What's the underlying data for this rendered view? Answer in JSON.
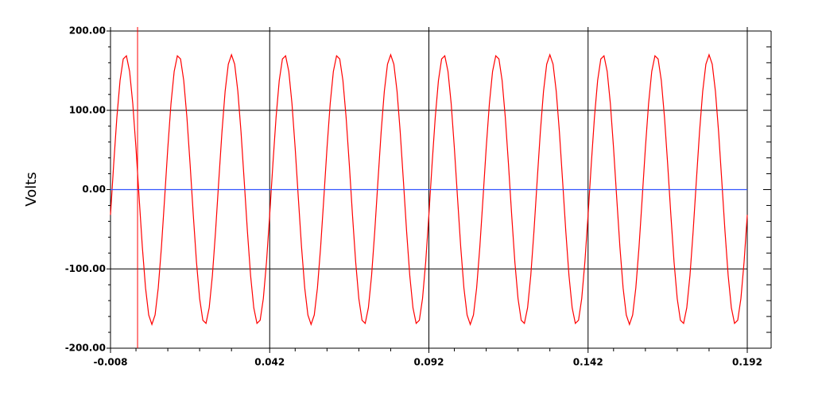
{
  "chart_data": {
    "type": "line",
    "y_label": "Volts",
    "xlim": [
      -0.008,
      0.192
    ],
    "xticks": [
      -0.008,
      0.042,
      0.092,
      0.142,
      0.192
    ],
    "minor_xticks": [
      0,
      0.01,
      0.02,
      0.03,
      0.05,
      0.06,
      0.07,
      0.08,
      0.1,
      0.11,
      0.12,
      0.13,
      0.15,
      0.16,
      0.17,
      0.18
    ],
    "ylim": [
      -200,
      200
    ],
    "yticks": [
      {
        "value": 200,
        "label": "200.00"
      },
      {
        "value": 100,
        "label": "100.00"
      },
      {
        "value": 0,
        "label": "0.00"
      },
      {
        "value": -100,
        "label": "-100.00"
      },
      {
        "value": -200,
        "label": "-200.00"
      }
    ],
    "minor_yticks": [
      -180,
      -160,
      -140,
      -120,
      -80,
      -60,
      -40,
      -20,
      20,
      40,
      60,
      80,
      120,
      140,
      160,
      180
    ],
    "grid": true,
    "cursor_x": 0.0005,
    "cursor_color": "#ff0000",
    "series": [
      {
        "color": "#ff0000",
        "x": [
          -0.008,
          -0.007,
          -0.006,
          -0.005,
          -0.004,
          -0.003,
          -0.002,
          -0.001,
          0,
          0.001,
          0.002,
          0.003,
          0.004,
          0.005,
          0.006,
          0.007,
          0.008,
          0.009,
          0.01,
          0.011,
          0.012,
          0.013,
          0.014,
          0.015,
          0.016,
          0.017,
          0.018,
          0.019,
          0.02,
          0.021,
          0.022,
          0.023,
          0.024,
          0.025,
          0.026,
          0.027,
          0.028,
          0.029,
          0.03,
          0.031,
          0.032,
          0.033,
          0.034,
          0.035,
          0.036,
          0.037,
          0.038,
          0.039,
          0.04,
          0.041,
          0.042,
          0.043,
          0.044,
          0.045,
          0.046,
          0.047,
          0.048,
          0.049,
          0.05,
          0.051,
          0.052,
          0.053,
          0.054,
          0.055,
          0.056,
          0.057,
          0.058,
          0.059,
          0.06,
          0.061,
          0.062,
          0.063,
          0.064,
          0.065,
          0.066,
          0.067,
          0.068,
          0.069,
          0.07,
          0.071,
          0.072,
          0.073,
          0.074,
          0.075,
          0.076,
          0.077,
          0.078,
          0.079,
          0.08,
          0.081,
          0.082,
          0.083,
          0.084,
          0.085,
          0.086,
          0.087,
          0.088,
          0.089,
          0.09,
          0.091,
          0.092,
          0.093,
          0.094,
          0.095,
          0.096,
          0.097,
          0.098,
          0.099,
          0.1,
          0.101,
          0.102,
          0.103,
          0.104,
          0.105,
          0.106,
          0.107,
          0.108,
          0.109,
          0.11,
          0.111,
          0.112,
          0.113,
          0.114,
          0.115,
          0.116,
          0.117,
          0.118,
          0.119,
          0.12,
          0.121,
          0.122,
          0.123,
          0.124,
          0.125,
          0.126,
          0.127,
          0.128,
          0.129,
          0.13,
          0.131,
          0.132,
          0.133,
          0.134,
          0.135,
          0.136,
          0.137,
          0.138,
          0.139,
          0.14,
          0.141,
          0.142,
          0.143,
          0.144,
          0.145,
          0.146,
          0.147,
          0.148,
          0.149,
          0.15,
          0.151,
          0.152,
          0.153,
          0.154,
          0.155,
          0.156,
          0.157,
          0.158,
          0.159,
          0.16,
          0.161,
          0.162,
          0.163,
          0.164,
          0.165,
          0.166,
          0.167,
          0.168,
          0.169,
          0.17,
          0.171,
          0.172,
          0.173,
          0.174,
          0.175,
          0.176,
          0.177,
          0.178,
          0.179,
          0.18,
          0.181,
          0.182,
          0.183,
          0.184,
          0.185,
          0.186,
          0.187,
          0.188,
          0.189,
          0.19,
          0.191,
          0.192
        ],
        "values": [
          -31.9,
          31.9,
          91.1,
          137.5,
          164.7,
          168.7,
          149,
          108.4,
          52.5,
          -10.7,
          -72.4,
          -123.9,
          -158.1,
          -170,
          -158.1,
          -123.9,
          -72.4,
          -10.7,
          52.5,
          108.4,
          149,
          168.7,
          164.7,
          137.5,
          91.1,
          31.9,
          -31.9,
          -91.1,
          -137.5,
          -164.7,
          -168.7,
          -149,
          -108.4,
          -52.5,
          10.7,
          72.4,
          123.9,
          158.1,
          170,
          158.1,
          123.9,
          72.4,
          10.7,
          -52.5,
          -108.4,
          -149,
          -168.7,
          -164.7,
          -137.5,
          -91.1,
          -31.9,
          31.9,
          91.1,
          137.5,
          164.7,
          168.7,
          149,
          108.4,
          52.5,
          -10.7,
          -72.4,
          -123.9,
          -158.1,
          -170,
          -158.1,
          -123.9,
          -72.4,
          -10.7,
          52.5,
          108.4,
          149,
          168.7,
          164.7,
          137.5,
          91.1,
          31.9,
          -31.9,
          -91.1,
          -137.5,
          -164.7,
          -168.7,
          -149,
          -108.4,
          -52.5,
          10.7,
          72.4,
          123.9,
          158.1,
          170,
          158.1,
          123.9,
          72.4,
          10.7,
          -52.5,
          -108.4,
          -149,
          -168.7,
          -164.7,
          -137.5,
          -91.1,
          -31.9,
          31.9,
          91.1,
          137.5,
          164.7,
          168.7,
          149,
          108.4,
          52.5,
          -10.7,
          -72.4,
          -123.9,
          -158.1,
          -170,
          -158.1,
          -123.9,
          -72.4,
          -10.7,
          52.5,
          108.4,
          149,
          168.7,
          164.7,
          137.5,
          91.1,
          31.9,
          -31.9,
          -91.1,
          -137.5,
          -164.7,
          -168.7,
          -149,
          -108.4,
          -52.5,
          10.7,
          72.4,
          123.9,
          158.1,
          170,
          158.1,
          123.9,
          72.4,
          10.7,
          -52.5,
          -108.4,
          -149,
          -168.7,
          -164.7,
          -137.5,
          -91.1,
          -31.9,
          31.9,
          91.1,
          137.5,
          164.7,
          168.7,
          149,
          108.4,
          52.5,
          -10.7,
          -72.4,
          -123.9,
          -158.1,
          -170,
          -158.1,
          -123.9,
          -72.4,
          -10.7,
          52.5,
          108.4,
          149,
          168.7,
          164.7,
          137.5,
          91.1,
          31.9,
          -31.9,
          -91.1,
          -137.5,
          -164.7,
          -168.7,
          -149,
          -108.4,
          -52.5,
          10.7,
          72.4,
          123.9,
          158.1,
          170,
          158.1,
          123.9,
          72.4,
          10.7,
          -52.5,
          -108.4,
          -149,
          -168.7,
          -164.7,
          -137.5,
          -91.1,
          -31.9
        ]
      },
      {
        "color": "#3355ff",
        "x": [
          -0.008,
          0.192
        ],
        "values": [
          0,
          0
        ]
      }
    ]
  }
}
